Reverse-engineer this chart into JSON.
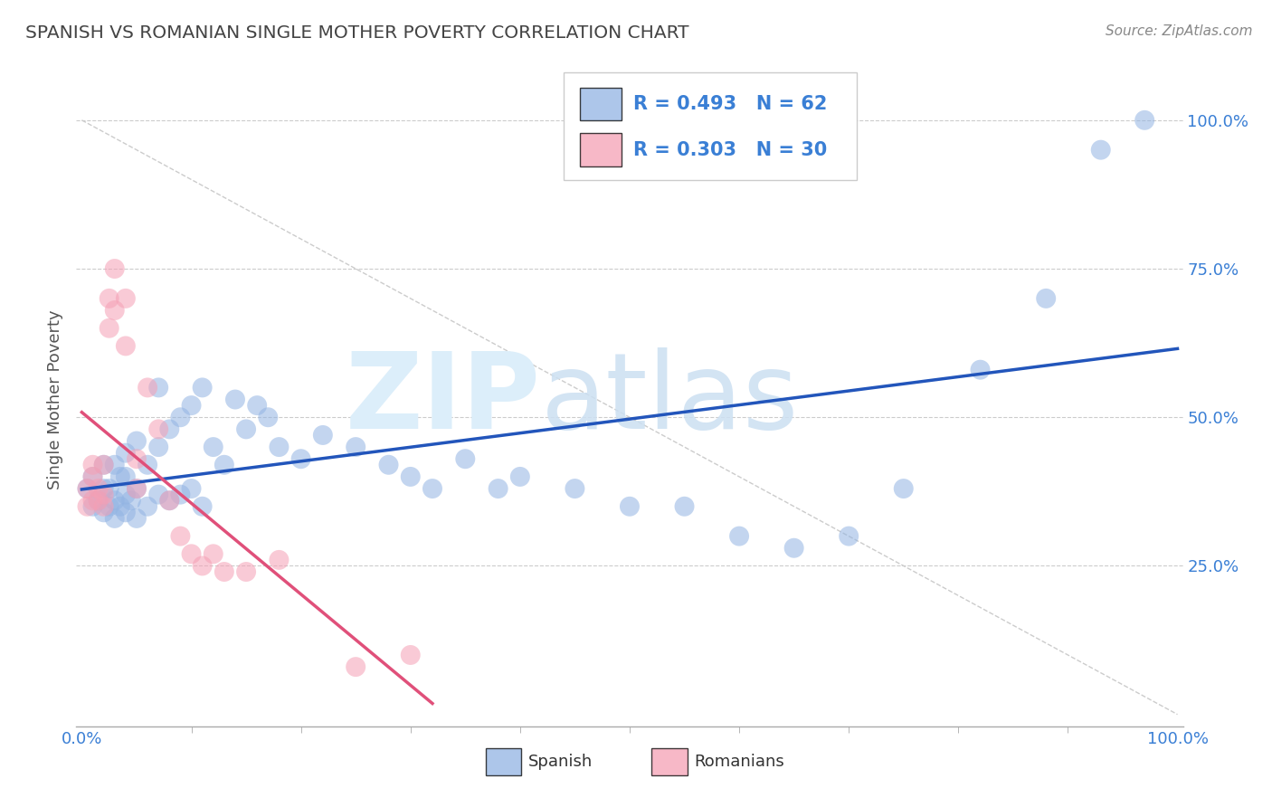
{
  "title": "SPANISH VS ROMANIAN SINGLE MOTHER POVERTY CORRELATION CHART",
  "source": "Source: ZipAtlas.com",
  "ylabel": "Single Mother Poverty",
  "spanish_color": "#92b4e3",
  "romanian_color": "#f5a0b5",
  "spanish_line_color": "#2255bb",
  "romanian_line_color": "#e0507a",
  "legend_r_spanish": "R = 0.493",
  "legend_n_spanish": "N = 62",
  "legend_r_romanian": "R = 0.303",
  "legend_n_romanian": "N = 30",
  "label_color": "#3a7fd5",
  "title_color": "#444444",
  "source_color": "#888888",
  "ylabel_color": "#555555",
  "ytick_vals": [
    0.25,
    0.5,
    0.75,
    1.0
  ],
  "ytick_labels": [
    "25.0%",
    "50.0%",
    "75.0%",
    "100.0%"
  ],
  "xtick_vals": [
    0.0,
    1.0
  ],
  "xtick_labels": [
    "0.0%",
    "100.0%"
  ],
  "spanish_x": [
    0.005,
    0.01,
    0.01,
    0.015,
    0.02,
    0.02,
    0.02,
    0.025,
    0.025,
    0.03,
    0.03,
    0.03,
    0.035,
    0.035,
    0.04,
    0.04,
    0.04,
    0.04,
    0.045,
    0.05,
    0.05,
    0.05,
    0.06,
    0.06,
    0.07,
    0.07,
    0.07,
    0.08,
    0.08,
    0.09,
    0.09,
    0.1,
    0.1,
    0.11,
    0.11,
    0.12,
    0.13,
    0.14,
    0.15,
    0.16,
    0.17,
    0.18,
    0.2,
    0.22,
    0.25,
    0.28,
    0.3,
    0.32,
    0.35,
    0.38,
    0.4,
    0.45,
    0.5,
    0.55,
    0.6,
    0.65,
    0.7,
    0.75,
    0.82,
    0.88,
    0.93,
    0.97
  ],
  "spanish_y": [
    0.38,
    0.35,
    0.4,
    0.36,
    0.34,
    0.38,
    0.42,
    0.35,
    0.38,
    0.33,
    0.36,
    0.42,
    0.35,
    0.4,
    0.34,
    0.37,
    0.4,
    0.44,
    0.36,
    0.33,
    0.38,
    0.46,
    0.35,
    0.42,
    0.37,
    0.45,
    0.55,
    0.36,
    0.48,
    0.37,
    0.5,
    0.38,
    0.52,
    0.35,
    0.55,
    0.45,
    0.42,
    0.53,
    0.48,
    0.52,
    0.5,
    0.45,
    0.43,
    0.47,
    0.45,
    0.42,
    0.4,
    0.38,
    0.43,
    0.38,
    0.4,
    0.38,
    0.35,
    0.35,
    0.3,
    0.28,
    0.3,
    0.38,
    0.58,
    0.7,
    0.95,
    1.0
  ],
  "romanian_x": [
    0.005,
    0.005,
    0.01,
    0.01,
    0.01,
    0.015,
    0.015,
    0.02,
    0.02,
    0.02,
    0.025,
    0.025,
    0.03,
    0.03,
    0.04,
    0.04,
    0.05,
    0.05,
    0.06,
    0.07,
    0.08,
    0.09,
    0.1,
    0.11,
    0.12,
    0.13,
    0.15,
    0.18,
    0.25,
    0.3
  ],
  "romanian_y": [
    0.35,
    0.38,
    0.36,
    0.4,
    0.42,
    0.36,
    0.38,
    0.35,
    0.37,
    0.42,
    0.65,
    0.7,
    0.68,
    0.75,
    0.62,
    0.7,
    0.38,
    0.43,
    0.55,
    0.48,
    0.36,
    0.3,
    0.27,
    0.25,
    0.27,
    0.24,
    0.24,
    0.26,
    0.08,
    0.1
  ]
}
